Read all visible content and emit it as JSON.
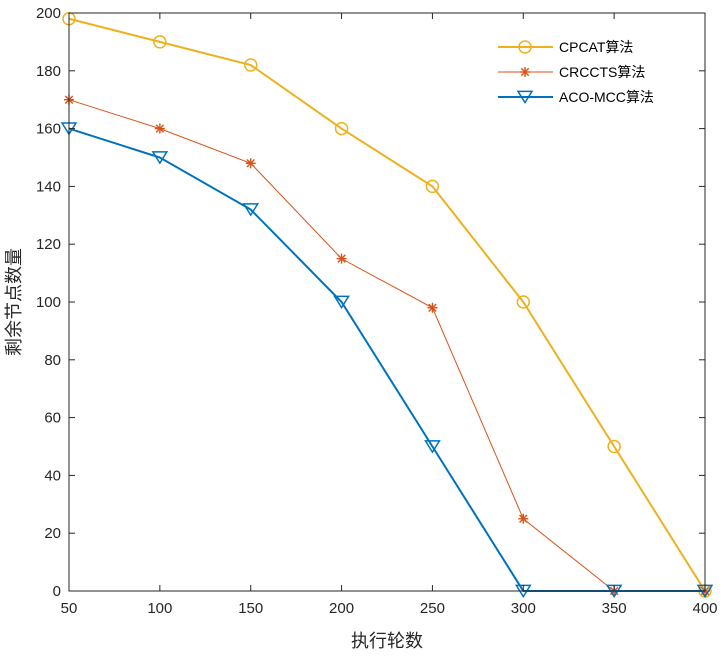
{
  "chart_data": {
    "type": "line",
    "title": "",
    "xlabel": "执行轮数",
    "ylabel": "剩余节点数量",
    "x": [
      50,
      100,
      150,
      200,
      250,
      300,
      350,
      400
    ],
    "xlim": [
      50,
      400
    ],
    "ylim": [
      0,
      200
    ],
    "xticks": [
      "50",
      "100",
      "150",
      "200",
      "250",
      "300",
      "350",
      "400"
    ],
    "yticks": [
      "0",
      "20",
      "40",
      "60",
      "80",
      "100",
      "120",
      "140",
      "160",
      "180",
      "200"
    ],
    "grid": false,
    "legend_position": "top-right",
    "series": [
      {
        "name": "CPCAT算法",
        "values": [
          198,
          190,
          182,
          160,
          140,
          100,
          50,
          0
        ],
        "color": "#EDB120",
        "marker": "circle"
      },
      {
        "name": "CRCCTS算法",
        "values": [
          170,
          160,
          148,
          115,
          98,
          25,
          0,
          0
        ],
        "color": "#D95319",
        "marker": "asterisk"
      },
      {
        "name": "ACO-MCC算法",
        "values": [
          160,
          150,
          132,
          100,
          50,
          0,
          0,
          0
        ],
        "color": "#0072BD",
        "marker": "triangle-down"
      }
    ]
  }
}
